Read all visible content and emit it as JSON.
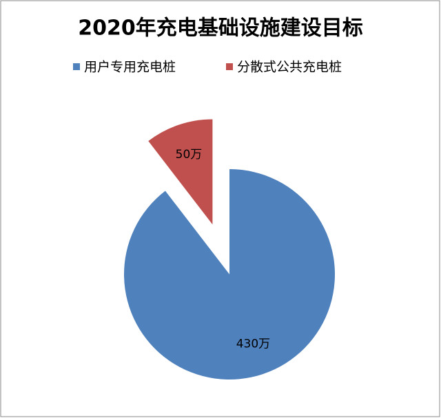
{
  "chart_data": {
    "type": "pie",
    "title": "2020年充电基础设施建设目标",
    "categories": [
      "用户专用充电桩",
      "分散式公共充电桩"
    ],
    "values": [
      430,
      50
    ],
    "value_labels": [
      "430万",
      "50万"
    ],
    "colors": [
      "#4f81bd",
      "#c0504d"
    ],
    "explode": [
      0,
      0.5
    ],
    "legend": "top"
  }
}
